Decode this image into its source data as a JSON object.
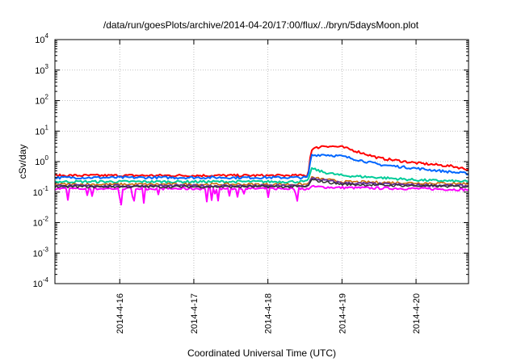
{
  "chart_data": {
    "type": "line",
    "title": "/data/run/goesPlots/archive/2014-04-20/17:00/flux/../bryn/5daysMoon.plot",
    "xlabel": "Coordinated Universal Time (UTC)",
    "ylabel": "cSv/day",
    "yscale": "log",
    "ylim": [
      0.0001,
      10000
    ],
    "xlim": [
      "2014-04-15 03:00",
      "2014-04-20 17:00"
    ],
    "grid": true,
    "legend": "none",
    "x_ticks": [
      "2014-4-16",
      "2014-4-17",
      "2014-4-18",
      "2014-4-19",
      "2014-4-20"
    ],
    "y_ticks": [
      {
        "value": 0.0001,
        "base": "10",
        "exp": "-4"
      },
      {
        "value": 0.001,
        "base": "10",
        "exp": "-3"
      },
      {
        "value": 0.01,
        "base": "10",
        "exp": "-2"
      },
      {
        "value": 0.1,
        "base": "10",
        "exp": "-1"
      },
      {
        "value": 1,
        "base": "10",
        "exp": "0"
      },
      {
        "value": 10,
        "base": "10",
        "exp": "1"
      },
      {
        "value": 100,
        "base": "10",
        "exp": "2"
      },
      {
        "value": 1000,
        "base": "10",
        "exp": "3"
      },
      {
        "value": 10000,
        "base": "10",
        "exp": "4"
      }
    ],
    "series": [
      {
        "color": "#ff00ff",
        "width": 2,
        "noisy_dips": true,
        "x": [
          "2014-04-15 03:00",
          "2014-04-16 00:00",
          "2014-04-17 00:00",
          "2014-04-18 00:00",
          "2014-04-18 13:00",
          "2014-04-18 14:00",
          "2014-04-19 00:00",
          "2014-04-20 00:00",
          "2014-04-20 17:00"
        ],
        "y": [
          0.13,
          0.13,
          0.13,
          0.13,
          0.13,
          0.15,
          0.14,
          0.13,
          0.12
        ]
      },
      {
        "color": "#ff0000",
        "width": 2,
        "x": [
          "2014-04-15 03:00",
          "2014-04-16 00:00",
          "2014-04-17 00:00",
          "2014-04-18 00:00",
          "2014-04-18 13:00",
          "2014-04-18 14:00",
          "2014-04-18 18:00",
          "2014-04-19 00:00",
          "2014-04-19 06:00",
          "2014-04-19 12:00",
          "2014-04-20 00:00",
          "2014-04-20 12:00",
          "2014-04-20 17:00"
        ],
        "y": [
          0.35,
          0.35,
          0.35,
          0.35,
          0.35,
          2.5,
          3.3,
          3.0,
          2.0,
          1.3,
          0.9,
          0.7,
          0.55
        ]
      },
      {
        "color": "#0066ff",
        "width": 2,
        "x": [
          "2014-04-15 03:00",
          "2014-04-16 00:00",
          "2014-04-17 00:00",
          "2014-04-18 00:00",
          "2014-04-18 13:00",
          "2014-04-18 14:00",
          "2014-04-18 18:00",
          "2014-04-19 00:00",
          "2014-04-19 06:00",
          "2014-04-19 12:00",
          "2014-04-20 00:00",
          "2014-04-20 12:00",
          "2014-04-20 17:00"
        ],
        "y": [
          0.3,
          0.3,
          0.3,
          0.3,
          0.3,
          1.6,
          1.7,
          1.5,
          1.1,
          0.8,
          0.6,
          0.45,
          0.4
        ]
      },
      {
        "color": "#00cc99",
        "width": 2,
        "x": [
          "2014-04-15 03:00",
          "2014-04-16 00:00",
          "2014-04-17 00:00",
          "2014-04-18 00:00",
          "2014-04-18 13:00",
          "2014-04-18 14:00",
          "2014-04-18 18:00",
          "2014-04-19 00:00",
          "2014-04-19 12:00",
          "2014-04-20 00:00",
          "2014-04-20 17:00"
        ],
        "y": [
          0.22,
          0.22,
          0.22,
          0.22,
          0.22,
          0.6,
          0.45,
          0.35,
          0.3,
          0.25,
          0.22
        ]
      },
      {
        "color": "#cc6600",
        "width": 1.5,
        "x": [
          "2014-04-15 03:00",
          "2014-04-16 00:00",
          "2014-04-17 00:00",
          "2014-04-18 00:00",
          "2014-04-18 13:00",
          "2014-04-18 14:00",
          "2014-04-19 00:00",
          "2014-04-20 00:00",
          "2014-04-20 17:00"
        ],
        "y": [
          0.18,
          0.18,
          0.18,
          0.18,
          0.18,
          0.3,
          0.22,
          0.2,
          0.19
        ]
      },
      {
        "color": "#663399",
        "width": 2,
        "x": [
          "2014-04-15 03:00",
          "2014-04-16 00:00",
          "2014-04-17 00:00",
          "2014-04-18 00:00",
          "2014-04-18 13:00",
          "2014-04-18 14:00",
          "2014-04-19 00:00",
          "2014-04-20 00:00",
          "2014-04-20 17:00"
        ],
        "y": [
          0.16,
          0.16,
          0.16,
          0.16,
          0.16,
          0.28,
          0.2,
          0.17,
          0.16
        ]
      },
      {
        "color": "#333333",
        "width": 1.5,
        "x": [
          "2014-04-15 03:00",
          "2014-04-16 00:00",
          "2014-04-17 00:00",
          "2014-04-18 00:00",
          "2014-04-18 13:00",
          "2014-04-18 14:00",
          "2014-04-19 00:00",
          "2014-04-20 00:00",
          "2014-04-20 17:00"
        ],
        "y": [
          0.15,
          0.15,
          0.15,
          0.15,
          0.15,
          0.25,
          0.18,
          0.16,
          0.15
        ]
      }
    ]
  }
}
